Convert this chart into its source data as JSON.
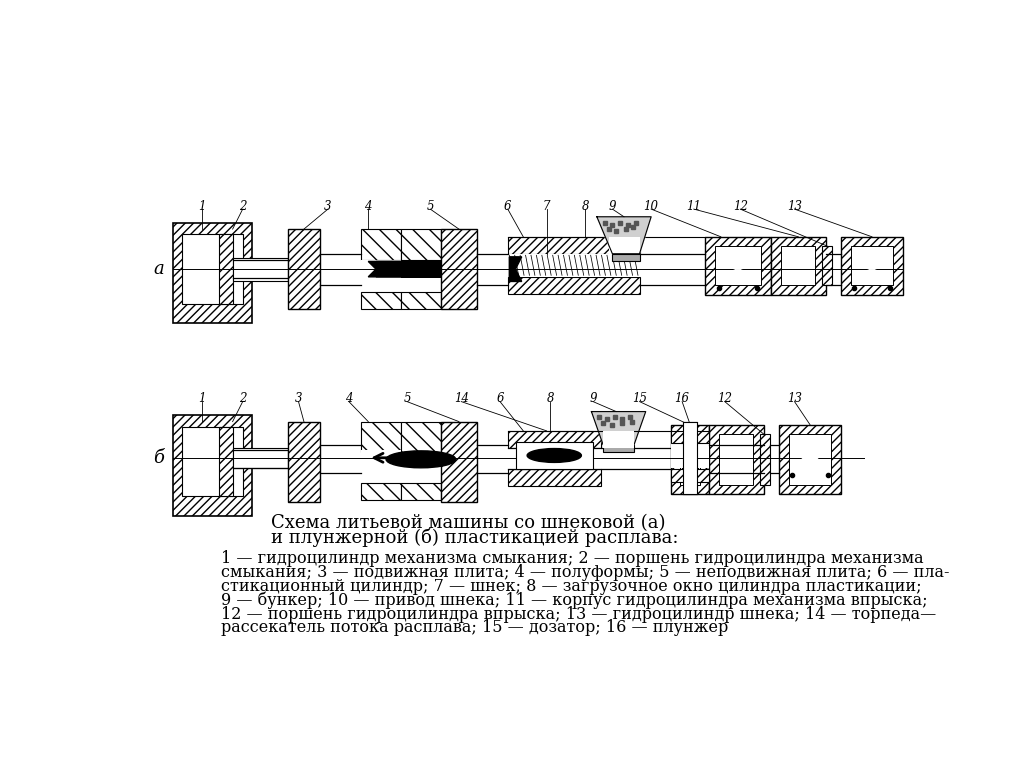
{
  "background_color": "#ffffff",
  "title_line1": "Схема литьевой машины со шнековой (а)",
  "title_line2": "и плунжерной (б) пластикацией расплава:",
  "legend_lines": [
    "1 — гидроцилиндр механизма смыкания; 2 — поршень гидроцилиндра механизма",
    "смыкания; 3 — подвижная плита; 4 — полуформы; 5 — неподвижная плита; 6 — пла-",
    "стикационный цилиндр; 7 — шнек; 8 — загрузочное окно цилиндра пластикации;",
    "9 — бункер; 10 — привод шнека; 11 — корпус гидроцилиндра механизма впрыска;",
    "12 — поршень гидроцилиндра впрыска; 13 — гидроцилиндр шнека; 14 — торпеда—",
    "рассекатель потока расплава; 15 — дозатор; 16 — плунжер"
  ],
  "text_color": "#000000",
  "title_fontsize": 13,
  "legend_fontsize": 11.5
}
